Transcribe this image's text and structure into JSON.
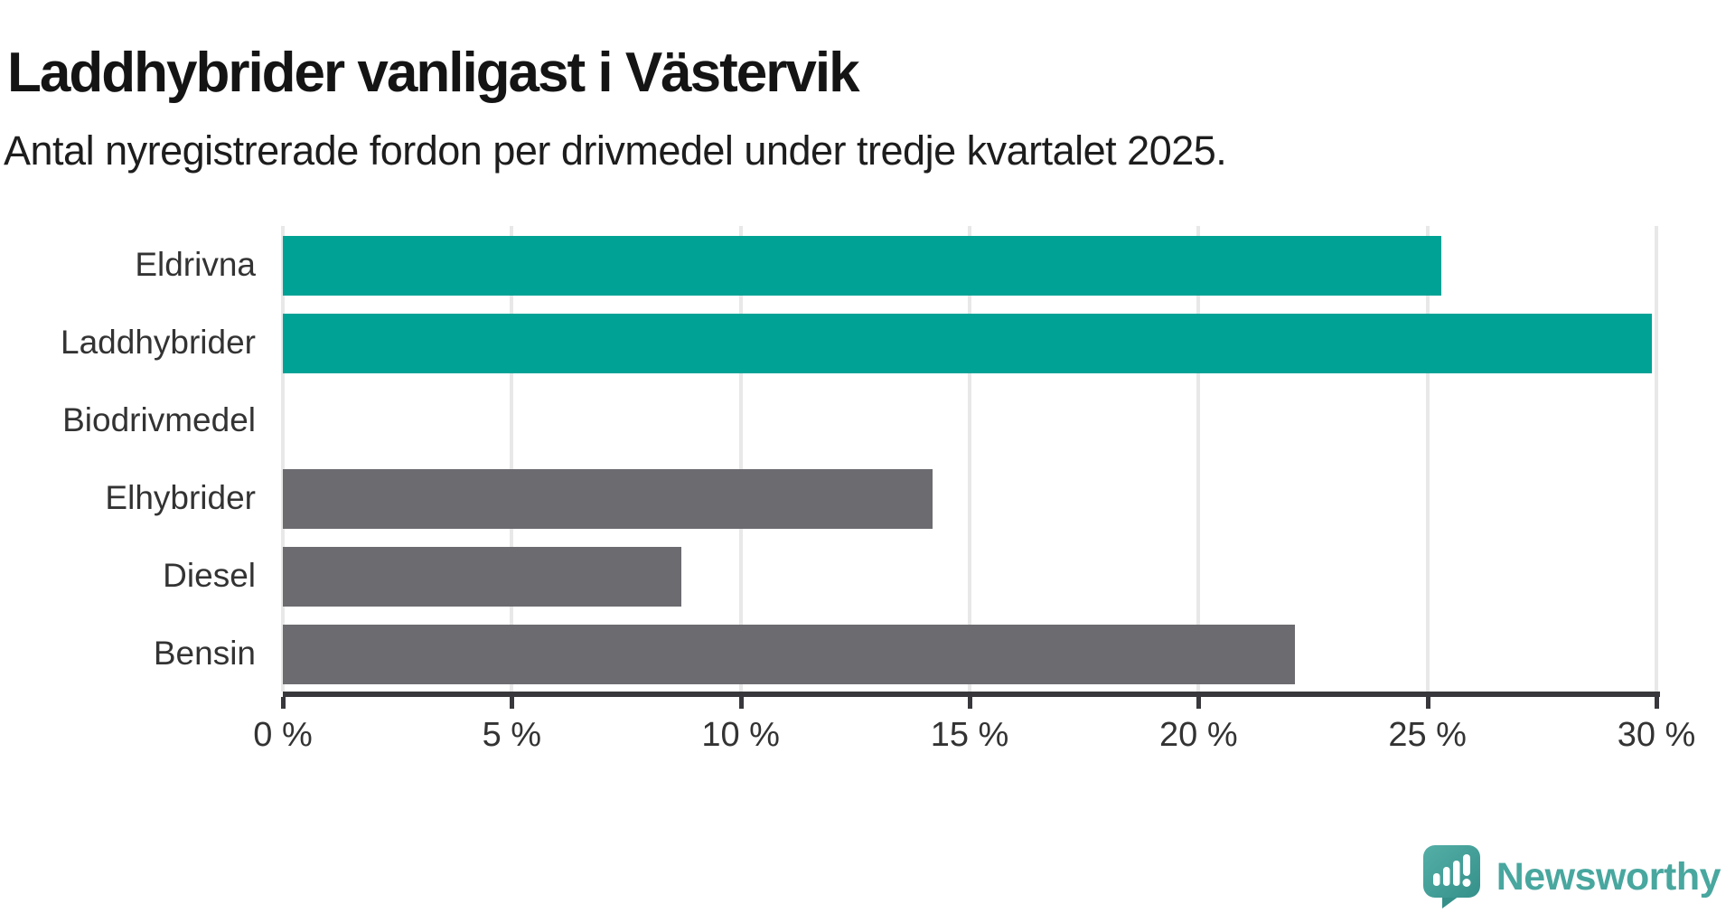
{
  "chart": {
    "title": "Laddhybrider vanligast i Västervik",
    "subtitle": "Antal nyregistrerade fordon per drivmedel under tredje kvartalet 2025."
  },
  "chart_data": {
    "type": "bar",
    "orientation": "horizontal",
    "title": "Laddhybrider vanligast i Västervik",
    "subtitle": "Antal nyregistrerade fordon per drivmedel under tredje kvartalet 2025.",
    "categories": [
      "Eldrivna",
      "Laddhybrider",
      "Biodrivmedel",
      "Elhybrider",
      "Diesel",
      "Bensin"
    ],
    "values": [
      25.3,
      29.9,
      0,
      14.2,
      8.7,
      22.1
    ],
    "unit": "%",
    "bar_colors": [
      "#00a296",
      "#00a296",
      "#6b6b70",
      "#6b6b70",
      "#6b6b70",
      "#6b6b70"
    ],
    "xlim": [
      0,
      30
    ],
    "x_ticks": [
      "0 %",
      "5 %",
      "10 %",
      "15 %",
      "20 %",
      "25 %",
      "30 %"
    ],
    "grid": "vertical",
    "legend": "none"
  },
  "colors": {
    "accent_teal": "#00a296",
    "bar_gray": "#6b6b70",
    "gridline": "#e8e8e8",
    "axis": "#38383c",
    "text": "#333333"
  },
  "branding": {
    "logo_text": "Newsworthy",
    "logo_text_color": "#48a79f",
    "logo_icon": "speech-bubble-bar-chart-exclamation",
    "logo_icon_color_top": "#54afa7",
    "logo_icon_color_bottom": "#35908a"
  }
}
